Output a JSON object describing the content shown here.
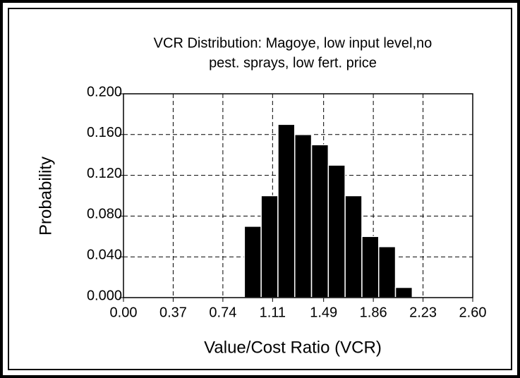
{
  "chart_data": {
    "type": "histogram",
    "title": [
      "VCR Distribution: Magoye, low input level,no",
      "pest. sprays, low fert. price"
    ],
    "x_label": "Value/Cost Ratio (VCR)",
    "y_label": "Probability",
    "bins": [
      0.9,
      1.025,
      1.15,
      1.275,
      1.4,
      1.525,
      1.65,
      1.775,
      1.9,
      2.025,
      2.15
    ],
    "values": [
      0.07,
      0.1,
      0.17,
      0.16,
      0.15,
      0.13,
      0.1,
      0.06,
      0.05,
      0.01
    ],
    "color": "#000000",
    "xlim": [
      0,
      2.6
    ],
    "xticks": [
      {
        "value": 0,
        "label": "0.00"
      },
      0.37,
      0.74,
      1.11,
      1.49,
      1.86,
      2.23,
      {
        "value": 2.6,
        "label": "2.60"
      }
    ],
    "ylim": [
      0,
      0.2
    ],
    "yticks": [
      {
        "value": 0,
        "label": "0.000"
      },
      {
        "value": 0.04,
        "label": "0.040"
      },
      {
        "value": 0.08,
        "label": "0.080"
      },
      {
        "value": 0.12,
        "label": "0.120"
      },
      {
        "value": 0.16,
        "label": "0.160"
      },
      {
        "value": 0.2,
        "label": "0.200"
      }
    ],
    "grid": true
  }
}
